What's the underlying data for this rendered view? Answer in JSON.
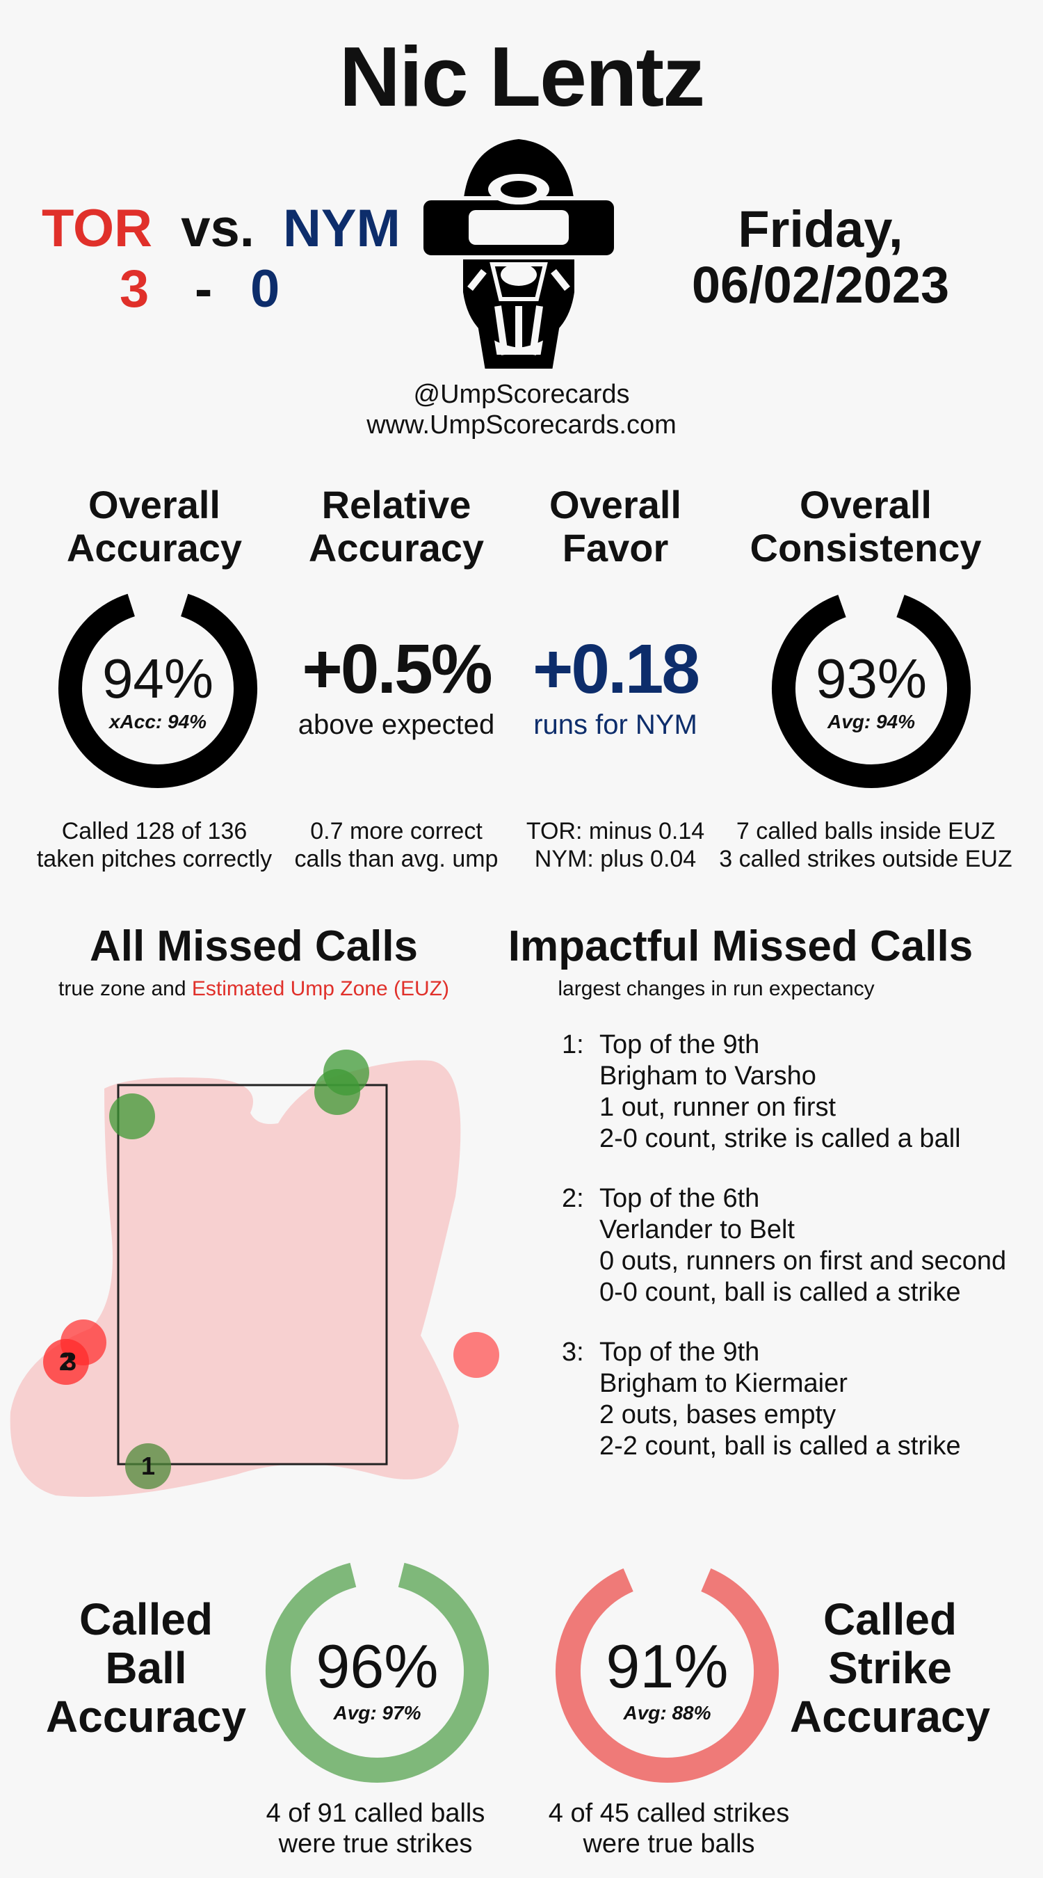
{
  "umpire_name": "Nic Lentz",
  "game": {
    "away_team": "TOR",
    "vs": "vs.",
    "home_team": "NYM",
    "away_score": "3",
    "dash": "-",
    "home_score": "0",
    "day": "Friday,",
    "date": "06/02/2023"
  },
  "colors": {
    "away": "#e0302a",
    "home": "#0d2d6b",
    "ball_ring": "#7fb87a",
    "strike_ring": "#ef7a78"
  },
  "brand": {
    "handle": "@UmpScorecards",
    "website": "www.UmpScorecards.com",
    "mask_icon": "umpire-mask-icon"
  },
  "stats": [
    {
      "heading_line1": "Overall",
      "heading_line2": "Accuracy",
      "value": "94%",
      "sub": "xAcc: 94%",
      "ring_fraction": 0.94,
      "foot_line1": "Called 128 of 136",
      "foot_line2": "taken pitches correctly"
    },
    {
      "heading_line1": "Relative",
      "heading_line2": "Accuracy",
      "value": "+0.5%",
      "sub": "above expected",
      "foot_line1": "0.7 more correct",
      "foot_line2": "calls than avg. ump"
    },
    {
      "heading_line1": "Overall",
      "heading_line2": "Favor",
      "value": "+0.18",
      "sub": "runs for NYM",
      "foot_line1": "TOR: minus 0.14",
      "foot_line2": "NYM: plus 0.04"
    },
    {
      "heading_line1": "Overall",
      "heading_line2": "Consistency",
      "value": "93%",
      "sub": "Avg: 94%",
      "ring_fraction": 0.93,
      "foot_line1": "7 called balls inside EUZ",
      "foot_line2": "3 called strikes outside EUZ"
    }
  ],
  "missed_calls": {
    "title": "All Missed Calls",
    "subtitle_prefix": "true zone and",
    "subtitle_euz": "Estimated Ump Zone (EUZ)",
    "labels": [
      "1",
      "2",
      "3"
    ]
  },
  "impactful": {
    "title": "Impactful Missed Calls",
    "subtitle": "largest changes in run expectancy",
    "calls": [
      {
        "num": "1:",
        "lines": [
          "Top of the 9th",
          "Brigham to Varsho",
          "1 out, runner on first",
          "2-0 count, strike is called a ball"
        ]
      },
      {
        "num": "2:",
        "lines": [
          "Top of the 6th",
          "Verlander to Belt",
          "0 outs, runners on first and second",
          "0-0 count, ball is called a strike"
        ]
      },
      {
        "num": "3:",
        "lines": [
          "Top of the 9th",
          "Brigham to Kiermaier",
          "2 outs, bases empty",
          "2-2 count, ball is called a strike"
        ]
      }
    ]
  },
  "ball_accuracy": {
    "head1": "Called",
    "head2": "Ball",
    "head3": "Accuracy",
    "value": "96%",
    "sub": "Avg: 97%",
    "ring_fraction": 0.96,
    "foot_line1": "4 of 91 called balls",
    "foot_line2": "were true strikes"
  },
  "strike_accuracy": {
    "head1": "Called",
    "head2": "Strike",
    "head3": "Accuracy",
    "value": "91%",
    "sub": "Avg: 88%",
    "ring_fraction": 0.91,
    "foot_line1": "4 of 45 called strikes",
    "foot_line2": "were true balls"
  }
}
